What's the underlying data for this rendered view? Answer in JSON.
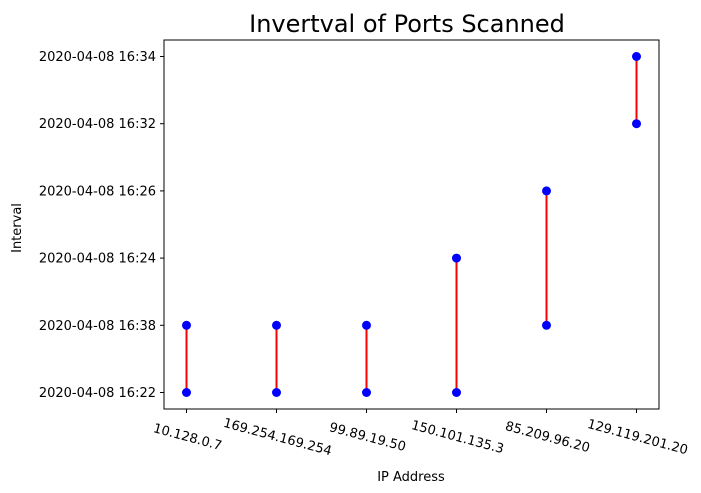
{
  "chart_data": {
    "type": "scatter",
    "title": "Invertval of Ports Scanned",
    "xlabel": "IP Address",
    "ylabel": "Interval",
    "categories": [
      "10.128.0.7",
      "169.254.169.254",
      "99.89.19.50",
      "150.101.135.3",
      "85.209.96.20",
      "129.119.201.20"
    ],
    "y_categories": [
      "2020-04-08 16:22",
      "2020-04-08 16:38",
      "2020-04-08 16:24",
      "2020-04-08 16:26",
      "2020-04-08 16:32",
      "2020-04-08 16:34"
    ],
    "intervals": [
      {
        "ip": "10.128.0.7",
        "start": "2020-04-08 16:22",
        "end": "2020-04-08 16:38"
      },
      {
        "ip": "169.254.169.254",
        "start": "2020-04-08 16:22",
        "end": "2020-04-08 16:38"
      },
      {
        "ip": "99.89.19.50",
        "start": "2020-04-08 16:22",
        "end": "2020-04-08 16:38"
      },
      {
        "ip": "150.101.135.3",
        "start": "2020-04-08 16:22",
        "end": "2020-04-08 16:24"
      },
      {
        "ip": "85.209.96.20",
        "start": "2020-04-08 16:38",
        "end": "2020-04-08 16:26"
      },
      {
        "ip": "129.119.201.20",
        "start": "2020-04-08 16:32",
        "end": "2020-04-08 16:34"
      }
    ],
    "grid": false,
    "colors": {
      "point": "#0000ff",
      "line": "#ff0000"
    }
  }
}
